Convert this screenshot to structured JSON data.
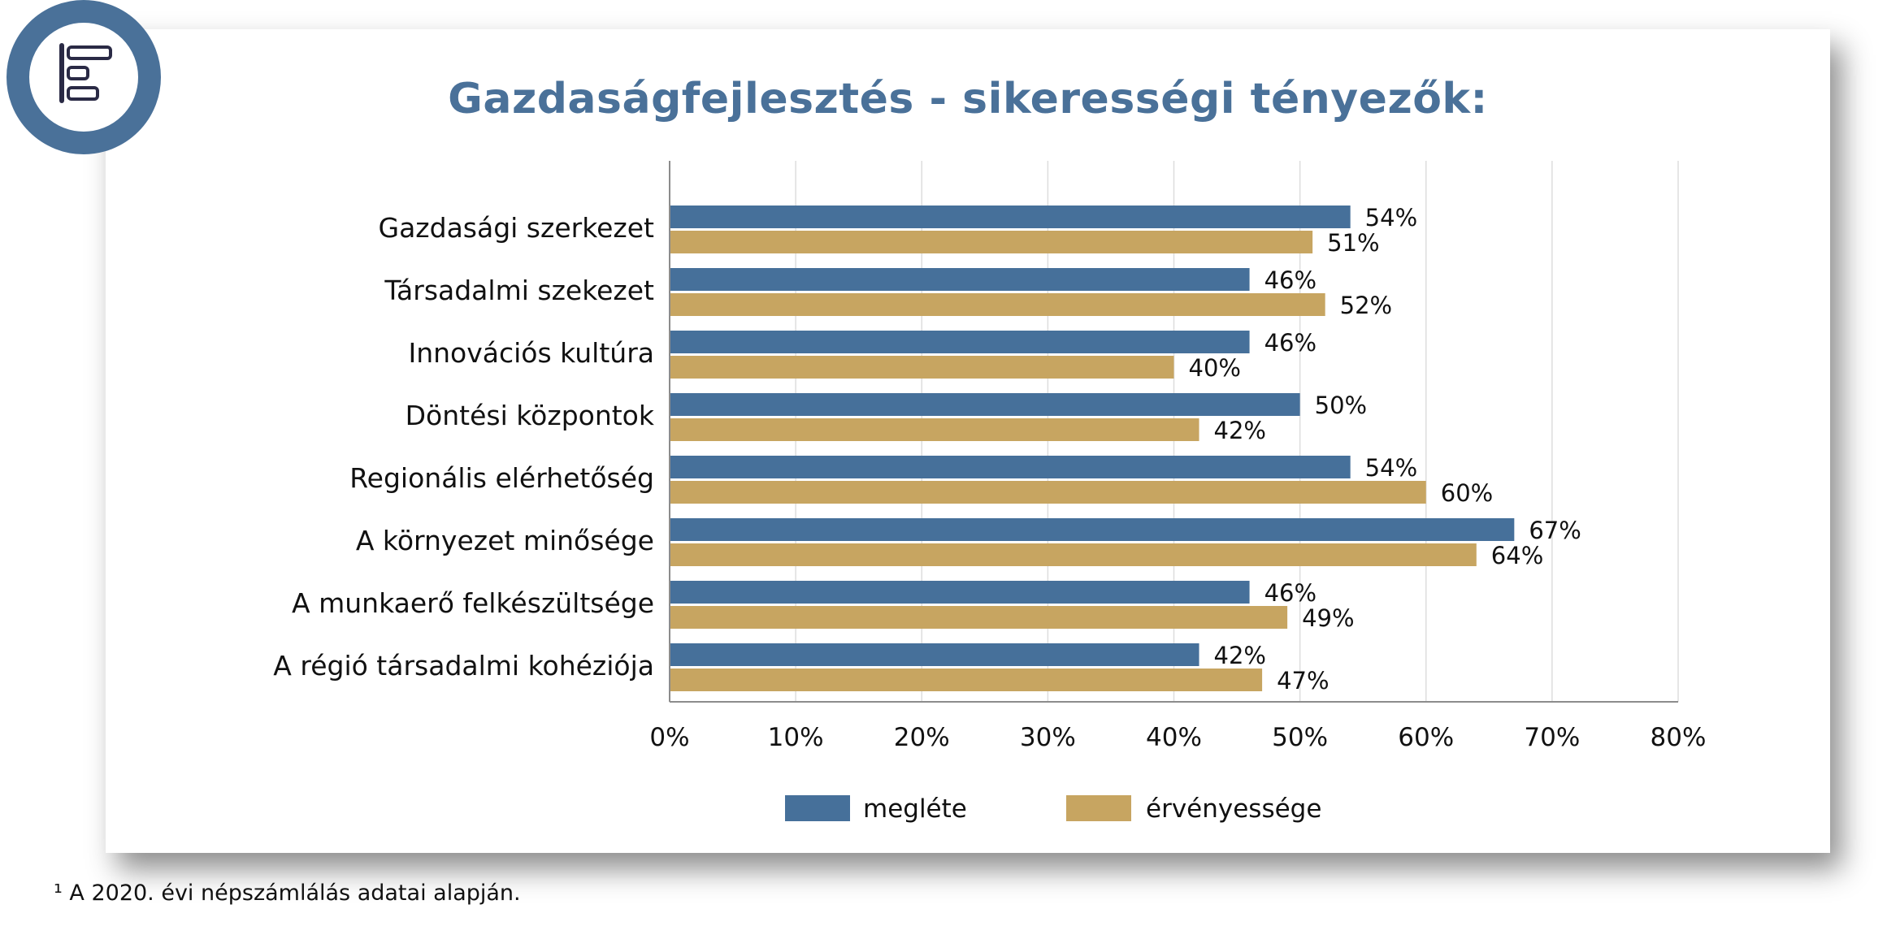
{
  "title": "Gazdaságfejlesztés - sikerességi tényezők:",
  "footnote": "¹ A 2020. évi népszámlálás adatai alapján.",
  "colors": {
    "accent": "#4a7199",
    "series1": "#46709a",
    "series2": "#c7a561",
    "grid": "#dddddd",
    "axis": "#8c8c8c"
  },
  "logo": {
    "icon": "bar-chart-icon"
  },
  "chart_data": {
    "type": "bar",
    "orientation": "horizontal",
    "categories": [
      "Gazdasági szerkezet",
      "Társadalmi szekezet",
      "Innovációs kultúra",
      "Döntési központok",
      "Regionális elérhetőség",
      "A környezet minősége",
      "A munkaerő felkészültsége",
      "A régió társadalmi kohéziója"
    ],
    "series": [
      {
        "name": "megléte",
        "color": "#46709a",
        "values": [
          54,
          46,
          46,
          50,
          54,
          67,
          46,
          42
        ],
        "labels": [
          "54%",
          "46%",
          "46%",
          "50%",
          "54%",
          "67%",
          "46%",
          "42%"
        ]
      },
      {
        "name": "érvényessége",
        "color": "#c7a561",
        "values": [
          51,
          52,
          40,
          42,
          60,
          64,
          49,
          47
        ],
        "labels": [
          "51%",
          "52%",
          "40%",
          "42%",
          "60%",
          "64%",
          "49%",
          "47%"
        ]
      }
    ],
    "xlim": [
      0,
      80
    ],
    "xticks": [
      0,
      10,
      20,
      30,
      40,
      50,
      60,
      70,
      80
    ],
    "xtick_labels": [
      "0%",
      "10%",
      "20%",
      "30%",
      "40%",
      "50%",
      "60%",
      "70%",
      "80%"
    ],
    "grid": true,
    "legend": "bottom-center"
  }
}
